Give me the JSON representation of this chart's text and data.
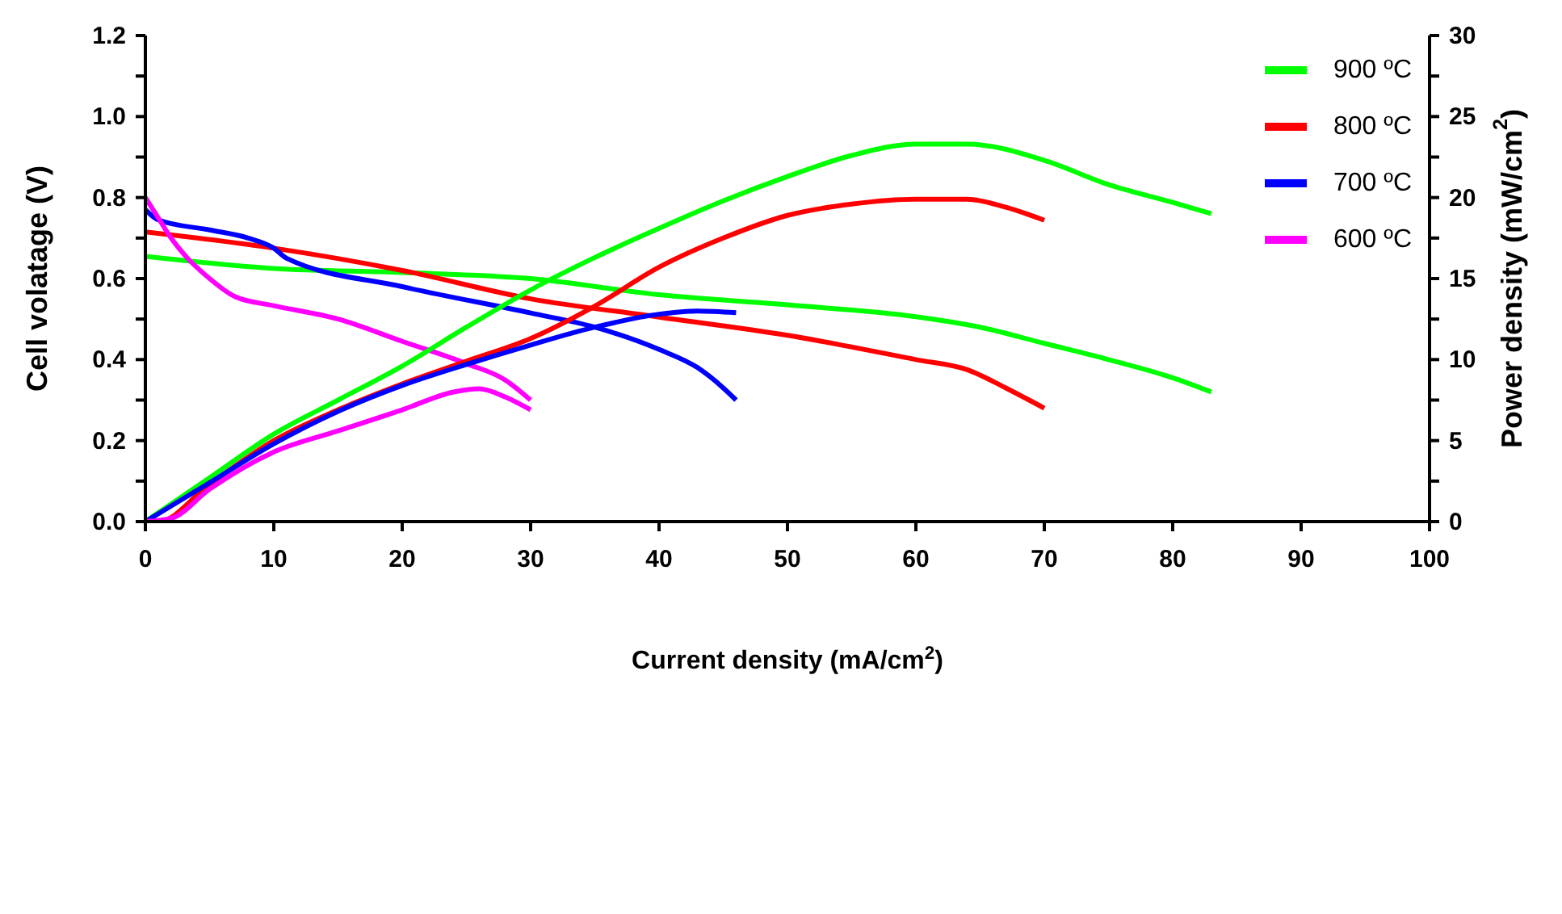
{
  "chart_data": {
    "type": "line",
    "xlabel": "Current density (mA/cm$^{2}$)",
    "ylabel": "Cell volatage (V)",
    "y2label": "Power density (mW/cm$^{2}$)",
    "xlim": [
      0,
      100
    ],
    "xticks": [
      0,
      10,
      20,
      30,
      40,
      50,
      60,
      70,
      80,
      90,
      100
    ],
    "ylim": [
      0,
      1.2
    ],
    "yticks": [
      {
        "value": 0,
        "label": "0.0"
      },
      {
        "value": 0.1,
        "label": null
      },
      {
        "value": 0.2,
        "label": "0.2"
      },
      {
        "value": 0.3,
        "label": null
      },
      {
        "value": 0.4,
        "label": "0.4"
      },
      {
        "value": 0.5,
        "label": null
      },
      {
        "value": 0.6,
        "label": "0.6"
      },
      {
        "value": 0.7,
        "label": null
      },
      {
        "value": 0.8,
        "label": "0.8"
      },
      {
        "value": 0.9,
        "label": null
      },
      {
        "value": 1.0,
        "label": "1.0"
      },
      {
        "value": 1.1,
        "label": null
      },
      {
        "value": 1.2,
        "label": "1.2"
      }
    ],
    "y2lim": [
      0,
      30
    ],
    "y2ticks": [
      0,
      {
        "value": 2.5,
        "label": null
      },
      5,
      {
        "value": 7.5,
        "label": null
      },
      10,
      {
        "value": 12.5,
        "label": null
      },
      15,
      {
        "value": 17.5,
        "label": null
      },
      20,
      {
        "value": 22.5,
        "label": null
      },
      25,
      {
        "value": 27.5,
        "label": null
      },
      30
    ],
    "legend": "top right",
    "grid": false,
    "marker": "none",
    "line_style": "solid",
    "series": [
      {
        "name": "900 ºC",
        "color": "#00ff00",
        "x": [
          0,
          10,
          20,
          30,
          40,
          50,
          60,
          65,
          70,
          75,
          80,
          83
        ],
        "values": [
          0.655,
          0.625,
          0.615,
          0.6,
          0.56,
          0.535,
          0.506,
          0.48,
          0.44,
          0.4,
          0.355,
          0.32
        ]
      },
      {
        "name": "800 ºC",
        "color": "#ff0000",
        "x": [
          0,
          10,
          20,
          30,
          40,
          50,
          60,
          64,
          67,
          70
        ],
        "values": [
          0.715,
          0.675,
          0.62,
          0.55,
          0.505,
          0.46,
          0.4,
          0.375,
          0.33,
          0.28
        ]
      },
      {
        "name": "700 ºC",
        "color": "#0000ff",
        "x": [
          0,
          1,
          5,
          8,
          10,
          11,
          20,
          30,
          35,
          40,
          43,
          45,
          46
        ],
        "values": [
          0.77,
          0.745,
          0.72,
          0.7,
          0.675,
          0.65,
          0.58,
          0.515,
          0.48,
          0.425,
          0.38,
          0.33,
          0.3
        ]
      },
      {
        "name": "600 ºC",
        "color": "#ff00ff",
        "x": [
          0,
          1,
          2,
          3,
          5,
          7,
          10,
          15,
          20,
          25,
          28,
          30
        ],
        "values": [
          0.8,
          0.75,
          0.7,
          0.66,
          0.6,
          0.555,
          0.533,
          0.5,
          0.445,
          0.39,
          0.35,
          0.3
        ]
      },
      {
        "color": "#00ff00",
        "axis": "y2",
        "x": [
          0,
          5,
          10,
          15,
          20,
          25,
          30,
          35,
          40,
          45,
          50,
          55,
          60,
          64,
          70,
          75,
          80,
          83
        ],
        "values": [
          0,
          2.7,
          5.4,
          7.5,
          9.6,
          12,
          14.3,
          16.3,
          18.1,
          19.8,
          21.3,
          22.6,
          23.3,
          23.3,
          22.3,
          20.8,
          19.7,
          19.0
        ]
      },
      {
        "color": "#ff0000",
        "axis": "y2",
        "x": [
          0,
          1,
          5,
          10,
          15,
          20,
          25,
          30,
          35,
          40,
          45,
          50,
          55,
          60,
          64,
          67,
          70
        ],
        "values": [
          0,
          0,
          2.3,
          5.0,
          6.9,
          8.5,
          9.9,
          11.3,
          13.3,
          15.7,
          17.5,
          18.9,
          19.6,
          19.9,
          19.9,
          19.4,
          18.6
        ]
      },
      {
        "color": "#0000ff",
        "axis": "y2",
        "x": [
          0,
          5,
          10,
          15,
          20,
          25,
          30,
          35,
          40,
          43,
          46
        ],
        "values": [
          0,
          2.4,
          4.8,
          6.8,
          8.4,
          9.7,
          10.9,
          12.0,
          12.8,
          13.0,
          12.9
        ]
      },
      {
        "color": "#ff00ff",
        "axis": "y2",
        "x": [
          0,
          2,
          5,
          10,
          15,
          20,
          24,
          26,
          28,
          30
        ],
        "values": [
          0,
          0.2,
          2.0,
          4.3,
          5.6,
          6.9,
          8.0,
          8.2,
          7.7,
          6.9
        ]
      }
    ]
  }
}
